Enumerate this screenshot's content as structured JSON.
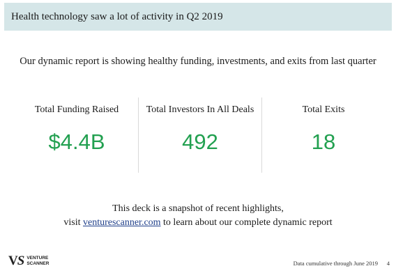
{
  "header": {
    "title": "Health technology saw a lot of activity in Q2 2019"
  },
  "subtitle": "Our dynamic report is showing healthy funding, investments, and exits from last quarter",
  "stats": [
    {
      "label": "Total Funding Raised",
      "value": "$4.4B"
    },
    {
      "label": "Total Investors In All Deals",
      "value": "492"
    },
    {
      "label": "Total Exits",
      "value": "18"
    }
  ],
  "footer": {
    "line1": "This deck is a snapshot of recent highlights,",
    "visit": "visit",
    "link": "venturescanner.com",
    "line2_rest": "to learn about our complete dynamic report"
  },
  "logo": {
    "mark_v": "V",
    "mark_s": "S",
    "text_line1": "VENTURE",
    "text_line2": "SCANNER"
  },
  "footnote": "Data cumulative through June 2019",
  "page_number": "4",
  "colors": {
    "accent_green": "#22a050",
    "title_bar": "#d5e6e8",
    "link": "#1f3f8a"
  }
}
